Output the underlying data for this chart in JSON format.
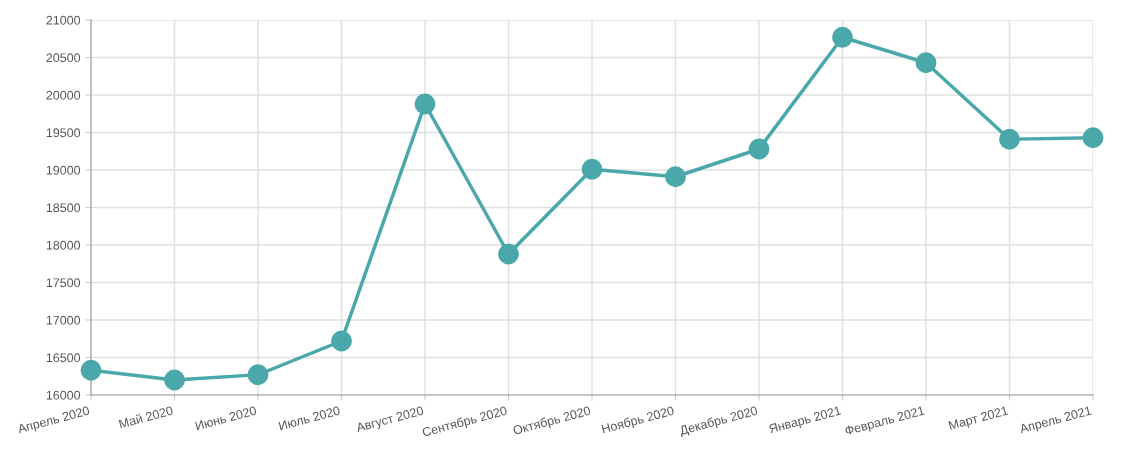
{
  "chart_data": {
    "type": "line",
    "categories": [
      "Апрель 2020",
      "Май 2020",
      "Июнь 2020",
      "Июль 2020",
      "Август 2020",
      "Сентябрь 2020",
      "Октябрь 2020",
      "Ноябрь 2020",
      "Декабрь 2020",
      "Январь 2021",
      "Февраль 2021",
      "Март 2021",
      "Апрель 2021"
    ],
    "series": [
      {
        "color": "#4aa8aa",
        "values": [
          16330,
          16200,
          16270,
          16720,
          19880,
          17880,
          19010,
          18910,
          19280,
          20770,
          20430,
          19410,
          19430
        ]
      }
    ],
    "ylim": [
      16000,
      21000
    ],
    "yticks": [
      16000,
      16500,
      17000,
      17500,
      18000,
      18500,
      19000,
      19500,
      20000,
      20500,
      21000
    ],
    "grid": true,
    "marker": "circle",
    "line_style": "solid",
    "legend": false
  }
}
